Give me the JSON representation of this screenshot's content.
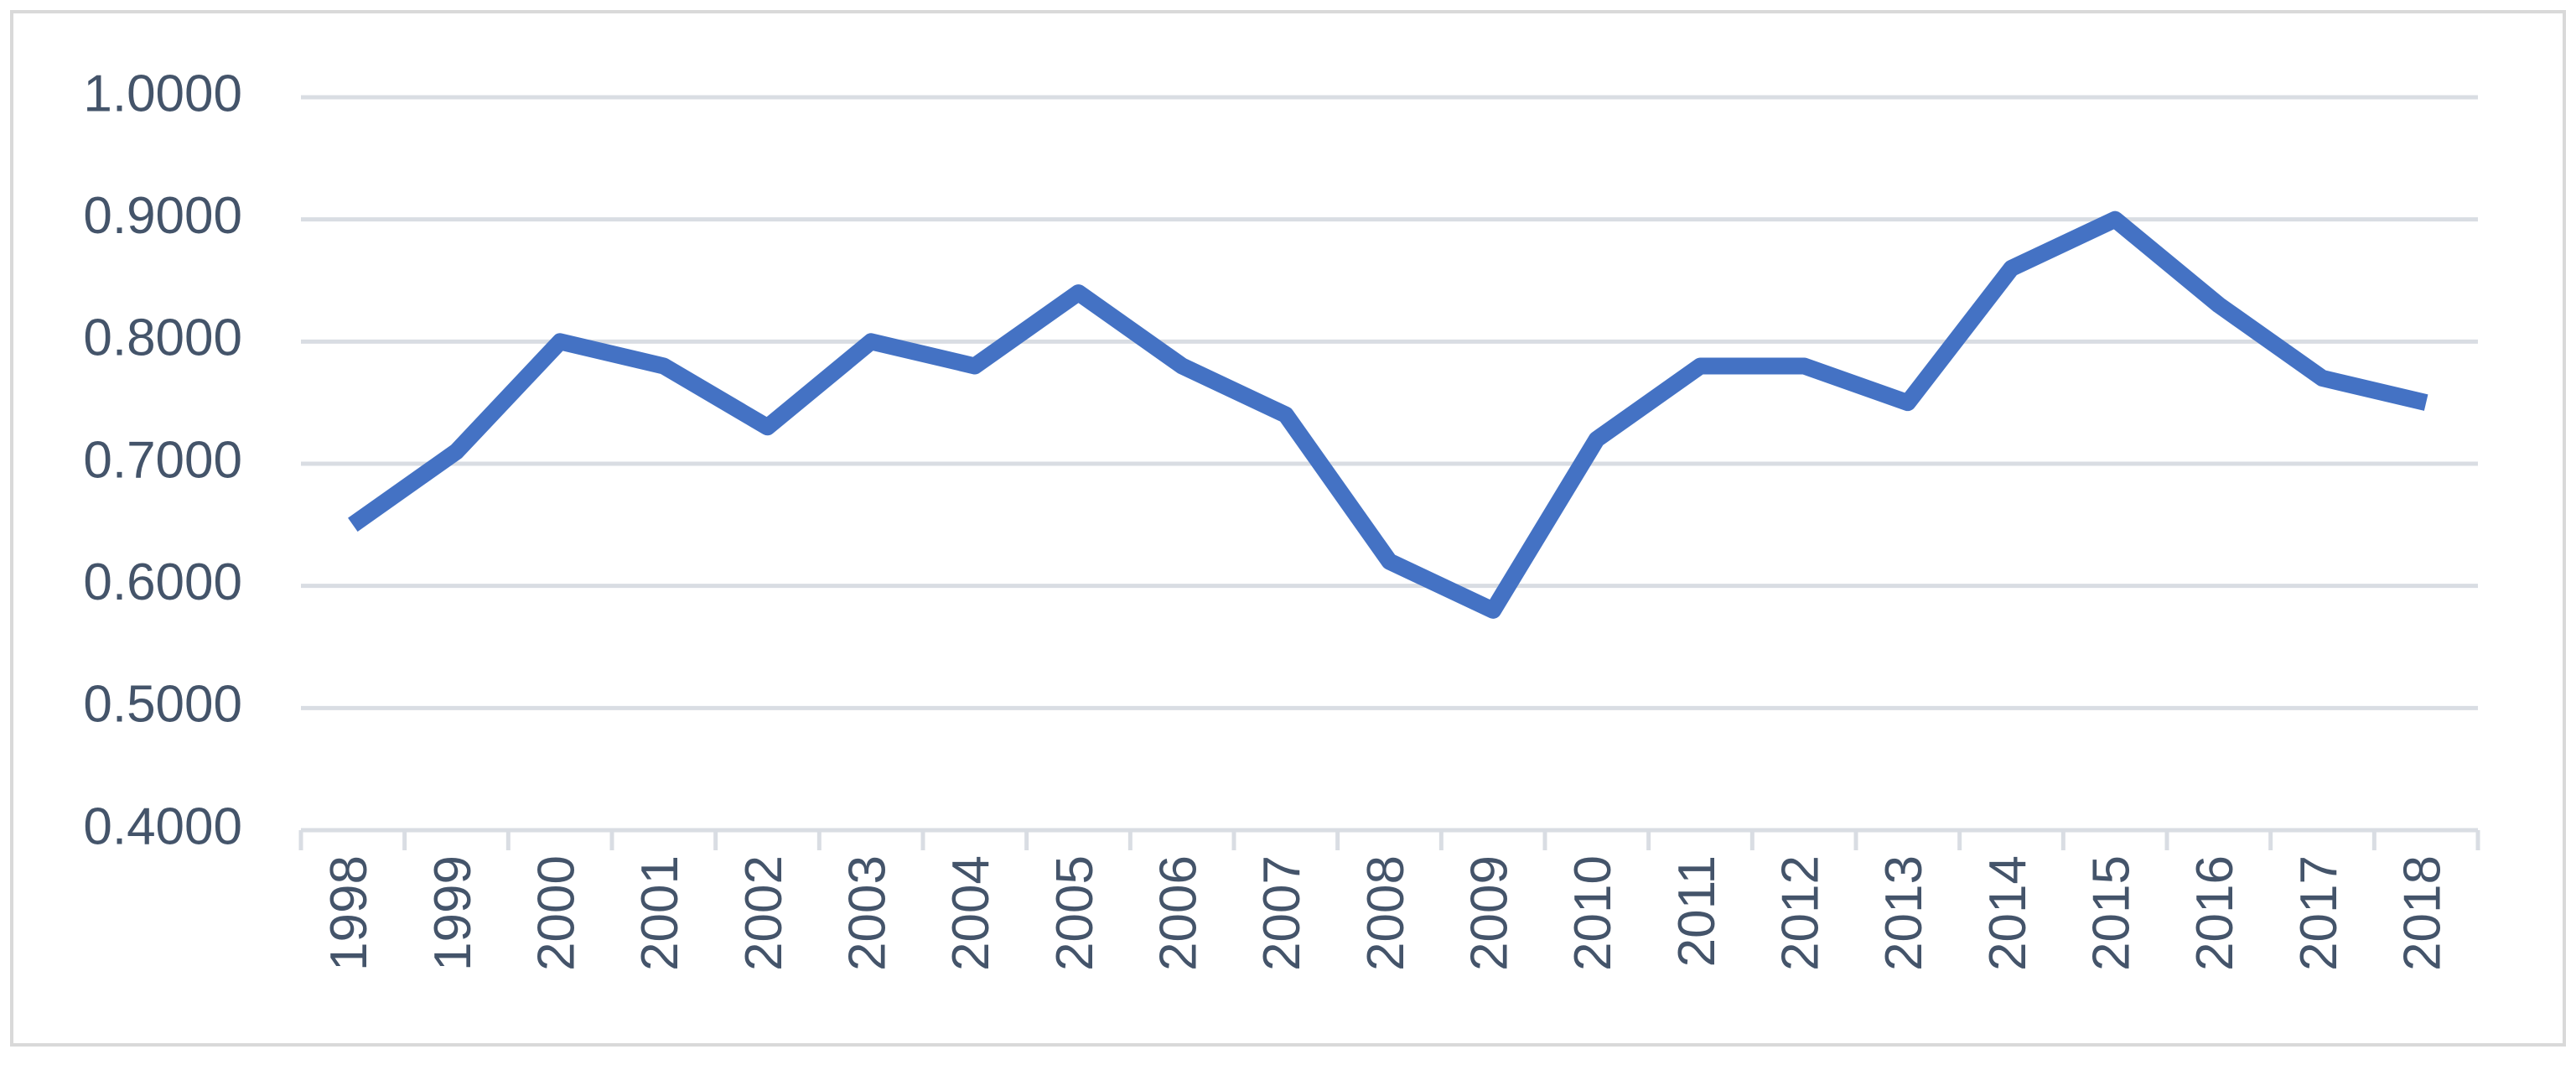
{
  "chart_data": {
    "type": "line",
    "categories": [
      "1998",
      "1999",
      "2000",
      "2001",
      "2002",
      "2003",
      "2004",
      "2005",
      "2006",
      "2007",
      "2008",
      "2009",
      "2010",
      "2011",
      "2012",
      "2013",
      "2014",
      "2015",
      "2016",
      "2017",
      "2018"
    ],
    "series": [
      {
        "color": "#4472c4",
        "values": [
          0.65,
          0.71,
          0.8,
          0.78,
          0.73,
          0.8,
          0.78,
          0.84,
          0.78,
          0.74,
          0.62,
          0.58,
          0.72,
          0.78,
          0.78,
          0.75,
          0.86,
          0.9,
          0.83,
          0.77,
          0.75
        ]
      }
    ],
    "ylim": [
      0.4,
      1.0
    ],
    "yticks": [
      {
        "value": 0.4,
        "label": "0.4000"
      },
      {
        "value": 0.5,
        "label": "0.5000"
      },
      {
        "value": 0.6,
        "label": "0.6000"
      },
      {
        "value": 0.7,
        "label": "0.7000"
      },
      {
        "value": 0.8,
        "label": "0.8000"
      },
      {
        "value": 0.9,
        "label": "0.9000"
      },
      {
        "value": 1.0,
        "label": "1.0000"
      }
    ],
    "grid": true
  }
}
